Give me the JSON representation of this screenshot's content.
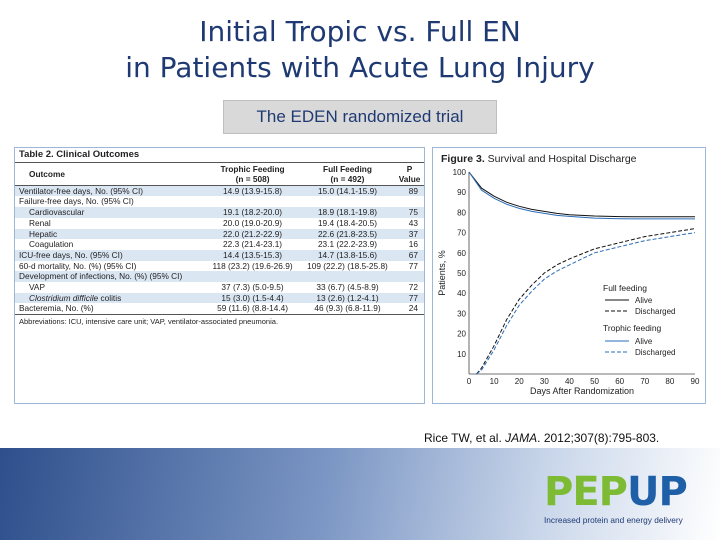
{
  "slide": {
    "title_line1": "Initial Tropic vs. Full EN",
    "title_line2": "in Patients with Acute Lung Injury",
    "subtitle": "The EDEN randomized trial",
    "citation_pre": "Rice TW, et al. ",
    "citation_journal": "JAMA",
    "citation_post": ". 2012;307(8):795-803."
  },
  "table": {
    "title": "Table 2. Clinical Outcomes",
    "headers": {
      "outcome": "Outcome",
      "trophic": "Trophic Feeding",
      "trophic_n": "(n = 508)",
      "full": "Full Feeding",
      "full_n": "(n = 492)",
      "p": "P",
      "p2": "Value"
    },
    "rows": [
      {
        "label": "Ventilator-free days, No. (95% CI)",
        "trophic": "14.9 (13.9-15.8)",
        "full": "15.0 (14.1-15.9)",
        "p": "89"
      },
      {
        "label": "Failure-free days, No. (95% CI)",
        "trophic": "",
        "full": "",
        "p": ""
      },
      {
        "label": "Cardiovascular",
        "trophic": "19.1 (18.2-20.0)",
        "full": "18.9 (18.1-19.8)",
        "p": "75"
      },
      {
        "label": "Renal",
        "trophic": "20.0 (19.0-20.9)",
        "full": "19.4 (18.4-20.5)",
        "p": "43"
      },
      {
        "label": "Hepatic",
        "trophic": "22.0 (21.2-22.9)",
        "full": "22.6 (21.8-23.5)",
        "p": "37"
      },
      {
        "label": "Coagulation",
        "trophic": "22.3 (21.4-23.1)",
        "full": "23.1 (22.2-23.9)",
        "p": "16"
      },
      {
        "label": "ICU-free days, No. (95% CI)",
        "trophic": "14.4 (13.5-15.3)",
        "full": "14.7 (13.8-15.6)",
        "p": "67"
      },
      {
        "label": "60-d mortality, No. (%) (95% CI)",
        "trophic": "118 (23.2) (19.6-26.9)",
        "full": "109 (22.2) (18.5-25.8)",
        "p": "77"
      },
      {
        "label": "Development of infections, No. (%) (95% CI)",
        "trophic": "",
        "full": "",
        "p": ""
      },
      {
        "label": "VAP",
        "trophic": "37 (7.3) (5.0-9.5)",
        "full": "33 (6.7) (4.5-8.9)",
        "p": "72"
      },
      {
        "label_italic": "Clostridium difficile",
        "label": " colitis",
        "trophic": "15 (3.0) (1.5-4.4)",
        "full": "13 (2.6) (1.2-4.1)",
        "p": "77"
      },
      {
        "label": "Bacteremia, No. (%)",
        "trophic": "59 (11.6) (8.8-14.4)",
        "full": "46 (9.3) (6.8-11.9)",
        "p": "24"
      }
    ],
    "footnote": "Abbreviations: ICU, intensive care unit; VAP, ventilator-associated pneumonia."
  },
  "chart_data": {
    "type": "line",
    "title_bold": "Figure 3.",
    "title": " Survival and Hospital Discharge",
    "xlabel": "Days After Randomization",
    "ylabel": "Patients, %",
    "xlim": [
      0,
      90
    ],
    "ylim": [
      0,
      100
    ],
    "xticks": [
      "0",
      "10",
      "20",
      "30",
      "40",
      "50",
      "60",
      "70",
      "80",
      "90"
    ],
    "yticks": [
      "100",
      "90",
      "80",
      "70",
      "60",
      "50",
      "40",
      "30",
      "20",
      "10"
    ],
    "grid": false,
    "legend": {
      "group1": "Full feeding",
      "group1_items": [
        "Alive",
        "Discharged"
      ],
      "group2": "Trophic feeding",
      "group2_items": [
        "Alive",
        "Discharged"
      ],
      "placement": "bottom-right"
    },
    "series": [
      {
        "group": "full",
        "kind": "alive",
        "color": "#111111",
        "dash": "none",
        "x": [
          0,
          5,
          10,
          15,
          20,
          25,
          30,
          35,
          40,
          50,
          60,
          70,
          80,
          90
        ],
        "y": [
          100,
          92,
          88,
          85,
          83,
          81.5,
          80.5,
          79.5,
          78.8,
          78.2,
          77.9,
          77.8,
          77.8,
          77.8
        ]
      },
      {
        "group": "trophic",
        "kind": "alive",
        "color": "#2b6cb8",
        "dash": "none",
        "x": [
          0,
          5,
          10,
          15,
          20,
          25,
          30,
          35,
          40,
          50,
          60,
          70,
          80,
          90
        ],
        "y": [
          100,
          91,
          87,
          84,
          82,
          80.5,
          79.5,
          78.5,
          78,
          77.2,
          76.9,
          76.8,
          76.8,
          76.8
        ]
      },
      {
        "group": "full",
        "kind": "discharged",
        "color": "#111111",
        "dash": "4 2",
        "x": [
          3,
          5,
          10,
          15,
          20,
          25,
          30,
          35,
          40,
          50,
          60,
          70,
          80,
          90
        ],
        "y": [
          0,
          3,
          14,
          27,
          37,
          44,
          50,
          54,
          57,
          62,
          65,
          68,
          70,
          72
        ]
      },
      {
        "group": "trophic",
        "kind": "discharged",
        "color": "#2b6cb8",
        "dash": "4 2",
        "x": [
          3,
          5,
          10,
          15,
          20,
          25,
          30,
          35,
          40,
          50,
          60,
          70,
          80,
          90
        ],
        "y": [
          0,
          2,
          12,
          24,
          34,
          41,
          47,
          51,
          54,
          60,
          63,
          66,
          68,
          70
        ]
      }
    ]
  },
  "logo": {
    "pep": "PEP",
    "up": "UP",
    "tagline": "Increased protein and energy delivery",
    "color_green": "#7dbb34",
    "color_blue": "#1f5fa8"
  }
}
